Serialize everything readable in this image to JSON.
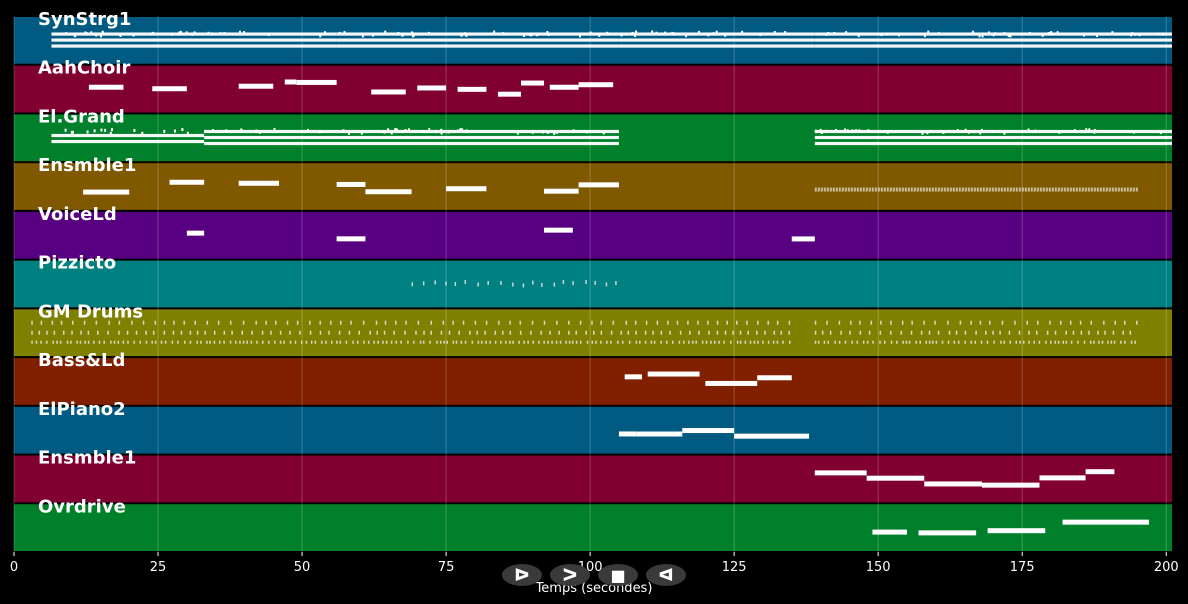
{
  "chart_data": {
    "type": "piano-roll",
    "xlabel": "Temps (secondes)",
    "xlim": [
      0,
      201
    ],
    "xticks": [
      0,
      25,
      50,
      75,
      100,
      125,
      150,
      175,
      200
    ],
    "grid": true,
    "tracks": [
      {
        "name": "SynStrg1",
        "color": "#005a82",
        "spans": [
          [
            6.5,
            56,
            1.0
          ],
          [
            56,
            105,
            1.0
          ],
          [
            105,
            139,
            1.1
          ],
          [
            139,
            201,
            1.0
          ]
        ]
      },
      {
        "name": "AahChoir",
        "color": "#800030",
        "notes": [
          [
            13,
            19
          ],
          [
            24,
            30
          ],
          [
            39,
            45
          ],
          [
            47,
            49
          ],
          [
            49,
            56
          ],
          [
            62,
            68
          ],
          [
            70,
            75
          ],
          [
            77,
            82
          ],
          [
            84,
            88
          ],
          [
            88,
            92
          ],
          [
            93,
            98
          ],
          [
            98,
            104
          ]
        ]
      },
      {
        "name": "El.Grand",
        "color": "#00802a",
        "spans": [
          [
            6.5,
            33,
            0.55
          ],
          [
            33,
            105,
            1.0
          ],
          [
            139,
            201,
            1.0
          ]
        ]
      },
      {
        "name": "Ensmble1",
        "color": "#805800",
        "notes": [
          [
            12,
            20
          ],
          [
            27,
            33
          ],
          [
            39,
            46
          ],
          [
            56,
            61
          ],
          [
            61,
            69
          ],
          [
            75,
            82
          ],
          [
            92,
            98
          ],
          [
            98,
            105
          ]
        ],
        "dense": [
          [
            139,
            195
          ]
        ]
      },
      {
        "name": "VoiceLd",
        "color": "#580082",
        "notes": [
          [
            30,
            33
          ],
          [
            56,
            61
          ],
          [
            92,
            97
          ],
          [
            135,
            139
          ]
        ]
      },
      {
        "name": "Pizzicto",
        "color": "#008080",
        "dots": [
          [
            69,
            105
          ]
        ]
      },
      {
        "name": "GM Drums",
        "color": "#808000",
        "dots": [
          [
            3,
            135
          ],
          [
            139,
            195
          ]
        ]
      },
      {
        "name": "Bass&Ld",
        "color": "#802000",
        "notes": [
          [
            106,
            109
          ],
          [
            110,
            119
          ],
          [
            120,
            129
          ],
          [
            129,
            135
          ]
        ]
      },
      {
        "name": "ElPiano2",
        "color": "#005a82",
        "notes": [
          [
            105,
            108
          ],
          [
            108,
            116
          ],
          [
            116,
            125
          ],
          [
            125,
            138
          ]
        ]
      },
      {
        "name": "Ensmble1",
        "color": "#800030",
        "notes": [
          [
            139,
            148
          ],
          [
            148,
            158
          ],
          [
            158,
            168
          ],
          [
            168,
            178
          ],
          [
            178,
            186
          ],
          [
            186,
            191
          ]
        ]
      },
      {
        "name": "Ovrdrive",
        "color": "#00802a",
        "notes": [
          [
            149,
            155
          ],
          [
            157,
            167
          ],
          [
            169,
            179
          ],
          [
            182,
            197
          ]
        ]
      }
    ]
  },
  "controls": {
    "buttons": [
      {
        "name": "play-button",
        "glyph": "ᐅ"
      },
      {
        "name": "forward-button",
        "glyph": "ᐳ"
      },
      {
        "name": "stop-button",
        "glyph": "■"
      },
      {
        "name": "rewind-button",
        "glyph": "ᐊ"
      }
    ],
    "button_color": "#3a3a3a"
  }
}
